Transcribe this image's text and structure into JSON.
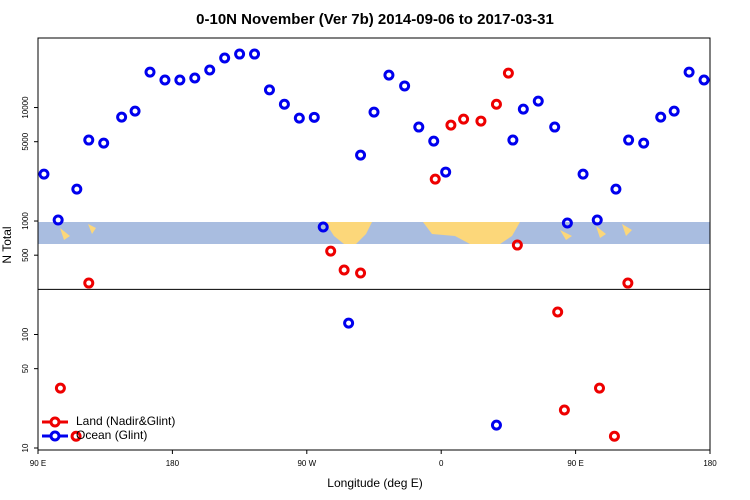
{
  "chart_data": {
    "type": "scatter",
    "title": "0-10N November (Ver 7b)   2014-09-06 to 2017-03-31",
    "x_label": "Longitude (deg E)",
    "y_label": "N Total",
    "xlim": [
      90,
      540
    ],
    "xticks": [
      {
        "value": 90,
        "label": "90 E"
      },
      180,
      {
        "value": 270,
        "label": "90 W"
      },
      {
        "value": 360,
        "label": "0"
      },
      {
        "value": 450,
        "label": "90 E"
      },
      {
        "value": 540,
        "label": "180"
      }
    ],
    "ylim": [
      9.6,
      41000
    ],
    "yticks": [
      10,
      50,
      100,
      500,
      1000,
      5000,
      10000
    ],
    "log_y": true,
    "panel_split": 250,
    "grid": false,
    "legend": "lower left",
    "series": [
      {
        "name": "Land (Nadir&Glint)",
        "color": "#ee0000",
        "x": [
          105,
          115.5,
          124,
          286,
          295,
          306,
          356,
          366.5,
          375,
          386.6,
          397,
          405,
          411,
          438,
          442.5,
          466,
          476,
          485
        ],
        "values": [
          33.7,
          12.7,
          284,
          543,
          370,
          348,
          2340,
          7000,
          7910,
          7600,
          10700,
          20100,
          614,
          158,
          21.6,
          33.7,
          12.7,
          284
        ]
      },
      {
        "name": "Ocean (Glint)",
        "color": "#0000ee",
        "x": [
          94,
          103.5,
          116,
          124,
          134,
          146,
          155,
          165,
          175,
          185,
          195,
          205,
          215,
          225,
          235,
          245,
          255,
          265,
          275,
          281,
          298,
          306,
          315,
          325,
          335.5,
          345,
          355,
          363,
          397,
          408,
          415,
          425,
          436,
          444.5,
          455,
          464.5,
          477,
          485.5,
          495.6,
          507,
          516,
          526,
          536
        ],
        "values": [
          2590,
          1020,
          1910,
          5170,
          4860,
          8240,
          9300,
          20500,
          17500,
          17500,
          18200,
          21400,
          27300,
          29600,
          29600,
          14300,
          10700,
          8070,
          8200,
          885,
          126,
          3810,
          9120,
          19300,
          15500,
          6730,
          5060,
          2700,
          15.9,
          5170,
          9680,
          11400,
          6730,
          960,
          2590,
          1020,
          1910,
          5170,
          4860,
          8240,
          9300,
          20500,
          17500
        ]
      }
    ]
  }
}
